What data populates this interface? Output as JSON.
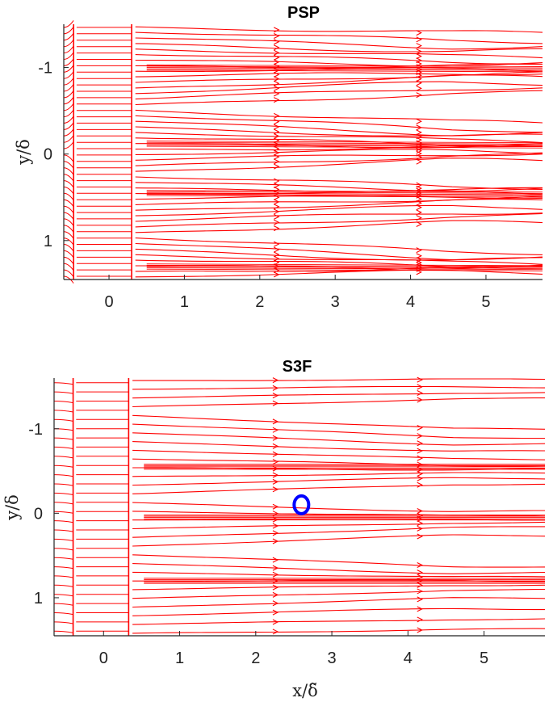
{
  "colors": {
    "streamline": "#ff0000",
    "marker": "#0000ff",
    "axis": "#222222"
  },
  "chart_data": [
    {
      "type": "streamline",
      "title": "PSP",
      "xlabel": "",
      "ylabel": "y/δ",
      "xlim": [
        -0.6,
        5.75
      ],
      "ylim": [
        -1.5,
        1.45
      ],
      "y_reversed": true,
      "xticks": [
        0,
        1,
        2,
        3,
        4,
        5
      ],
      "yticks": [
        -1,
        0,
        1
      ],
      "xtick_labels": [
        "0",
        "1",
        "2",
        "3",
        "4",
        "5"
      ],
      "ytick_labels": [
        "-1",
        "0",
        "1"
      ],
      "features": {
        "separation_line_x": -0.47,
        "reattachment_line_x": 0.3,
        "convergence_lines_y": [
          -1.0,
          -0.12,
          0.45,
          1.3
        ],
        "divergence_lines_y": [
          -0.55,
          0.2,
          0.95
        ]
      },
      "grid": false,
      "legend": "none"
    },
    {
      "type": "streamline",
      "title": "S3F",
      "xlabel": "x/δ̃",
      "ylabel": "y/δ",
      "xlim": [
        -0.65,
        5.8
      ],
      "ylim": [
        -1.6,
        1.45
      ],
      "y_reversed": true,
      "xticks": [
        0,
        1,
        2,
        3,
        4,
        5
      ],
      "yticks": [
        -1,
        0,
        1
      ],
      "xtick_labels": [
        "0",
        "1",
        "2",
        "3",
        "4",
        "5"
      ],
      "ytick_labels": [
        "-1",
        "0",
        "1"
      ],
      "features": {
        "separation_line_x": -0.4,
        "reattachment_line_x": 0.33,
        "convergence_lines_y": [
          -0.55,
          0.05,
          0.8
        ],
        "divergence_lines_y": [
          -1.2,
          -0.2,
          0.45
        ]
      },
      "marker": {
        "shape": "circle",
        "x": 2.6,
        "y": -0.1,
        "color": "#0000ff"
      },
      "grid": false,
      "legend": "none"
    }
  ]
}
